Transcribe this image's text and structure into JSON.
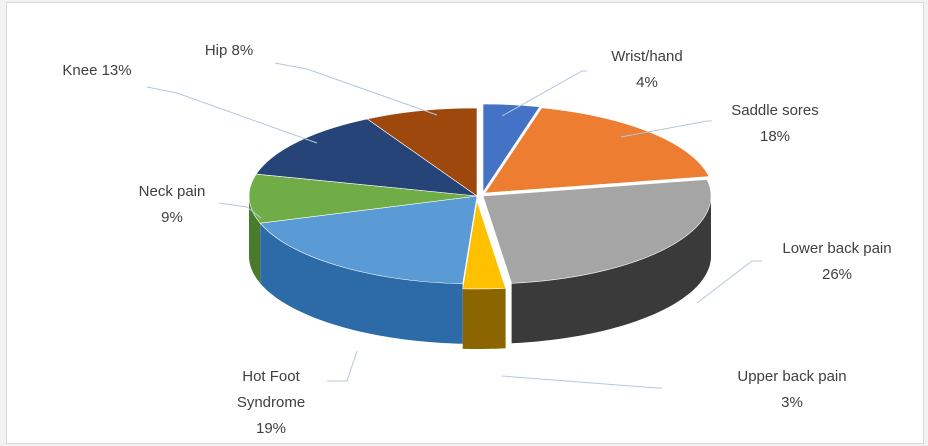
{
  "chart_data": {
    "type": "pie",
    "title": "",
    "style": "3d-exploded-tilted",
    "slices": [
      {
        "name": "Wrist/hand",
        "value": 4,
        "label_lines": [
          "Wrist/hand",
          "4%"
        ],
        "color": "#4472c4",
        "side": "#2e4f8a"
      },
      {
        "name": "Saddle sores",
        "value": 18,
        "label_lines": [
          "Saddle sores",
          "18%"
        ],
        "color": "#ed7d31",
        "side": "#b0561d"
      },
      {
        "name": "Lower back pain",
        "value": 26,
        "label_lines": [
          "Lower back pain",
          "26%"
        ],
        "color": "#a5a5a5",
        "side": "#3a3a3a"
      },
      {
        "name": "Upper back pain",
        "value": 3,
        "label_lines": [
          "Upper back pain",
          "3%"
        ],
        "color": "#ffc000",
        "side": "#8a6500"
      },
      {
        "name": "Hot Foot Syndrome",
        "value": 19,
        "label_lines": [
          "Hot Foot",
          "Syndrome",
          "19%"
        ],
        "color": "#5b9bd5",
        "side": "#2d6aa8"
      },
      {
        "name": "Neck pain",
        "value": 9,
        "label_lines": [
          "Neck pain",
          "9%"
        ],
        "color": "#70ad47",
        "side": "#4a7a2c"
      },
      {
        "name": "Knee",
        "value": 13,
        "label_lines": [
          "Knee 13%"
        ],
        "color": "#264478",
        "side": "#16294a"
      },
      {
        "name": "Hip",
        "value": 8,
        "label_lines": [
          "Hip 8%"
        ],
        "color": "#9e480e",
        "side": "#6b2f08"
      }
    ],
    "legend": "none",
    "data_labels": "outside-with-leader-lines"
  }
}
